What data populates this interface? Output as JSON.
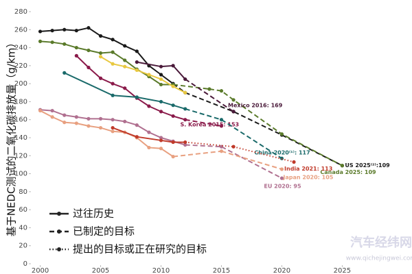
{
  "chart_data": {
    "type": "line",
    "y_label": "基于NEDC测试的二氧化碳排放量（g/km）",
    "xlim": [
      1999.4,
      2026
    ],
    "xticks": [
      2000,
      2005,
      2010,
      2015,
      2020,
      2025
    ],
    "ylim": [
      0,
      280
    ],
    "yticks": [
      0,
      20,
      40,
      60,
      80,
      100,
      120,
      140,
      160,
      180,
      200,
      220,
      240,
      260,
      280
    ],
    "legend": [
      {
        "label": "过往历史",
        "style": "solid"
      },
      {
        "label": "已制定的目标",
        "style": "dashed"
      },
      {
        "label": "提出的目标或正在研究的目标",
        "style": "dotted"
      }
    ],
    "series": [
      {
        "label": "US 2025⁽²⁾:109",
        "color": "#1a1a1a",
        "history": {
          "x": [
            2000,
            2001,
            2002,
            2003,
            2004,
            2005,
            2006,
            2007,
            2008,
            2009,
            2010,
            2011
          ],
          "values": [
            258,
            259,
            260,
            259,
            262,
            253,
            249,
            242,
            236,
            220,
            210,
            200
          ]
        },
        "enacted": {
          "x": [
            2012,
            2016,
            2020,
            2025
          ],
          "values": [
            190,
            169,
            143,
            109
          ]
        }
      },
      {
        "label": "Canada 2025: 109",
        "color": "#5a7a2a",
        "history": {
          "x": [
            2000,
            2001,
            2002,
            2003,
            2004,
            2005,
            2006,
            2007,
            2008,
            2009,
            2010,
            2011
          ],
          "values": [
            247,
            246,
            244,
            240,
            237,
            234,
            235,
            226,
            216,
            208,
            199,
            199
          ]
        },
        "enacted": {
          "x": [
            2014,
            2015,
            2016,
            2020,
            2025
          ],
          "values": [
            194,
            192,
            182,
            144,
            109
          ]
        }
      },
      {
        "label": "Mexico 2016: 169",
        "color": "#4a1a3a",
        "history": {
          "x": [
            2008,
            2010,
            2011,
            2012
          ],
          "values": [
            224,
            219,
            220,
            205
          ]
        },
        "enacted": {
          "x": [
            2016
          ],
          "values": [
            169
          ]
        }
      },
      {
        "color": "#e8c840",
        "history": {
          "x": [
            2005,
            2006,
            2007,
            2008,
            2009,
            2010,
            2011,
            2012
          ],
          "values": [
            230,
            222,
            219,
            215,
            210,
            205,
            197,
            190
          ]
        }
      },
      {
        "label": "S. Korea 2015: 153",
        "color": "#8a1a4a",
        "history": {
          "x": [
            2003,
            2004,
            2005,
            2006,
            2007,
            2008,
            2009,
            2010,
            2011,
            2012
          ],
          "values": [
            231,
            218,
            206,
            200,
            195,
            184,
            175,
            169,
            164,
            160
          ]
        },
        "enacted": {
          "x": [
            2015
          ],
          "values": [
            153
          ]
        }
      },
      {
        "label": "China 2020⁽¹⁾: 117",
        "color": "#1a6a6a",
        "history": {
          "x": [
            2002,
            2006,
            2008,
            2010,
            2011,
            2012
          ],
          "values": [
            212,
            187,
            185,
            180,
            176,
            172
          ]
        },
        "enacted": {
          "x": [
            2015,
            2020
          ],
          "values": [
            160,
            117
          ]
        }
      },
      {
        "label": "EU 2020: 95",
        "color": "#b07090",
        "history": {
          "x": [
            2000,
            2001,
            2002,
            2003,
            2004,
            2005,
            2006,
            2007,
            2008,
            2009,
            2010,
            2011,
            2012
          ],
          "values": [
            171,
            170,
            165,
            163,
            161,
            161,
            160,
            158,
            154,
            146,
            140,
            136,
            132
          ]
        },
        "enacted": {
          "x": [
            2015,
            2020
          ],
          "values": [
            130,
            95
          ]
        }
      },
      {
        "label": "Japan 2020: 105",
        "color": "#e8a080",
        "history": {
          "x": [
            2000,
            2001,
            2002,
            2003,
            2004,
            2005,
            2006,
            2007,
            2008,
            2009,
            2010,
            2011
          ],
          "values": [
            170,
            163,
            157,
            156,
            153,
            151,
            147,
            146,
            140,
            129,
            128,
            119
          ]
        },
        "enacted": {
          "x": [
            2015,
            2020
          ],
          "values": [
            125,
            105
          ]
        }
      },
      {
        "label": "India 2021: 113",
        "color": "#c03a2a",
        "history": {
          "x": [
            2006,
            2008,
            2010,
            2011,
            2012
          ],
          "values": [
            151,
            141,
            137,
            135,
            135
          ]
        },
        "proposed": {
          "x": [
            2016,
            2021
          ],
          "values": [
            130,
            113
          ]
        }
      }
    ]
  },
  "watermark": {
    "name": "汽车经纬网",
    "url": "www.qichejingwei.com"
  }
}
